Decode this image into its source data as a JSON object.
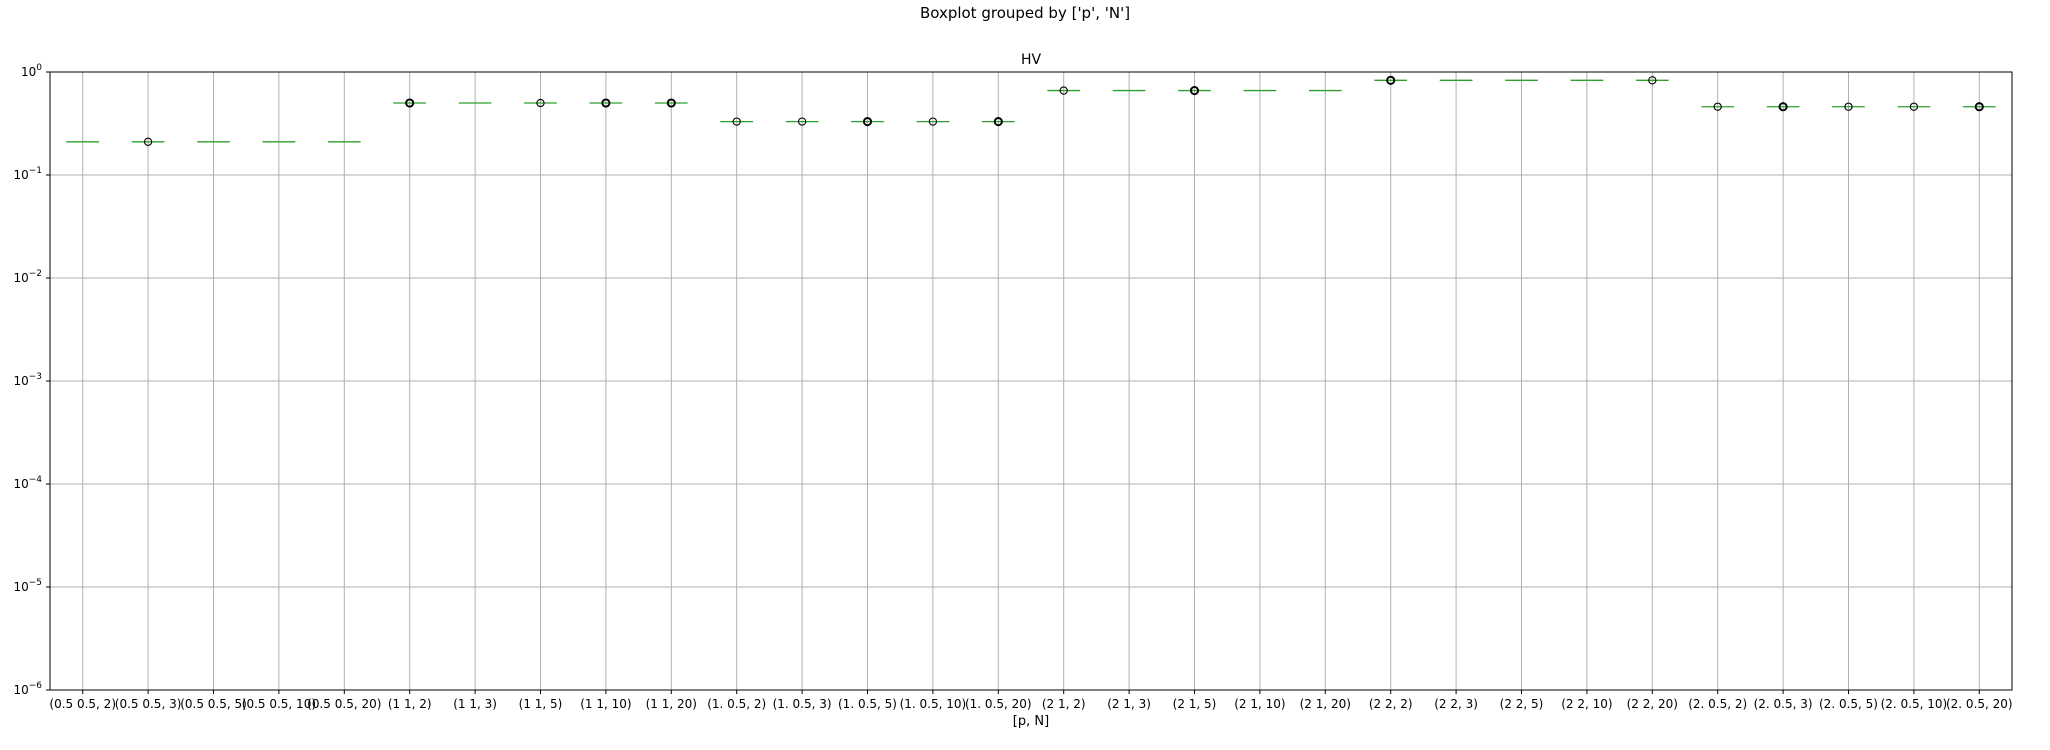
{
  "chart_data": {
    "type": "box",
    "suptitle": "Boxplot grouped by ['p', 'N']",
    "title": "HV",
    "xlabel": "[p, N]",
    "ylabel": "",
    "yscale": "log",
    "ylim": [
      1e-06,
      1
    ],
    "yticks": [
      {
        "value": 1,
        "base": "10",
        "exp": "0"
      },
      {
        "value": 0.1,
        "base": "10",
        "exp": "−1"
      },
      {
        "value": 0.01,
        "base": "10",
        "exp": "−2"
      },
      {
        "value": 0.001,
        "base": "10",
        "exp": "−3"
      },
      {
        "value": 0.0001,
        "base": "10",
        "exp": "−4"
      },
      {
        "value": 1e-05,
        "base": "10",
        "exp": "−5"
      },
      {
        "value": 1e-06,
        "base": "10",
        "exp": "−6"
      }
    ],
    "grid": true,
    "categories": [
      "(0.5 0.5, 2)",
      "(0.5 0.5, 3)",
      "(0.5 0.5, 5)",
      "(0.5 0.5, 10)",
      "(0.5 0.5, 20)",
      "(1 1, 2)",
      "(1 1, 3)",
      "(1 1, 5)",
      "(1 1, 10)",
      "(1 1, 20)",
      "(1. 0.5, 2)",
      "(1. 0.5, 3)",
      "(1. 0.5, 5)",
      "(1. 0.5, 10)",
      "(1. 0.5, 20)",
      "(2 1, 2)",
      "(2 1, 3)",
      "(2 1, 5)",
      "(2 1, 10)",
      "(2 1, 20)",
      "(2 2, 2)",
      "(2 2, 3)",
      "(2 2, 5)",
      "(2 2, 10)",
      "(2 2, 20)",
      "(2. 0.5, 2)",
      "(2. 0.5, 3)",
      "(2. 0.5, 5)",
      "(2. 0.5, 10)",
      "(2. 0.5, 20)"
    ],
    "medians": [
      0.21,
      0.21,
      0.21,
      0.21,
      0.21,
      0.5,
      0.5,
      0.5,
      0.5,
      0.5,
      0.33,
      0.33,
      0.33,
      0.33,
      0.33,
      0.66,
      0.66,
      0.66,
      0.66,
      0.66,
      0.83,
      0.83,
      0.83,
      0.83,
      0.83,
      0.46,
      0.46,
      0.46,
      0.46,
      0.46
    ],
    "outlier_markers": [
      0,
      1,
      0,
      0,
      0,
      2,
      0,
      1,
      2,
      2,
      1,
      1,
      2,
      1,
      2,
      1,
      0,
      2,
      0,
      0,
      2,
      0,
      0,
      0,
      1,
      1,
      2,
      1,
      1,
      2
    ],
    "colors": {
      "median": "#2ca02c",
      "grid": "#b0b0b0",
      "axis": "#000000",
      "marker_edge": "#000000"
    }
  }
}
